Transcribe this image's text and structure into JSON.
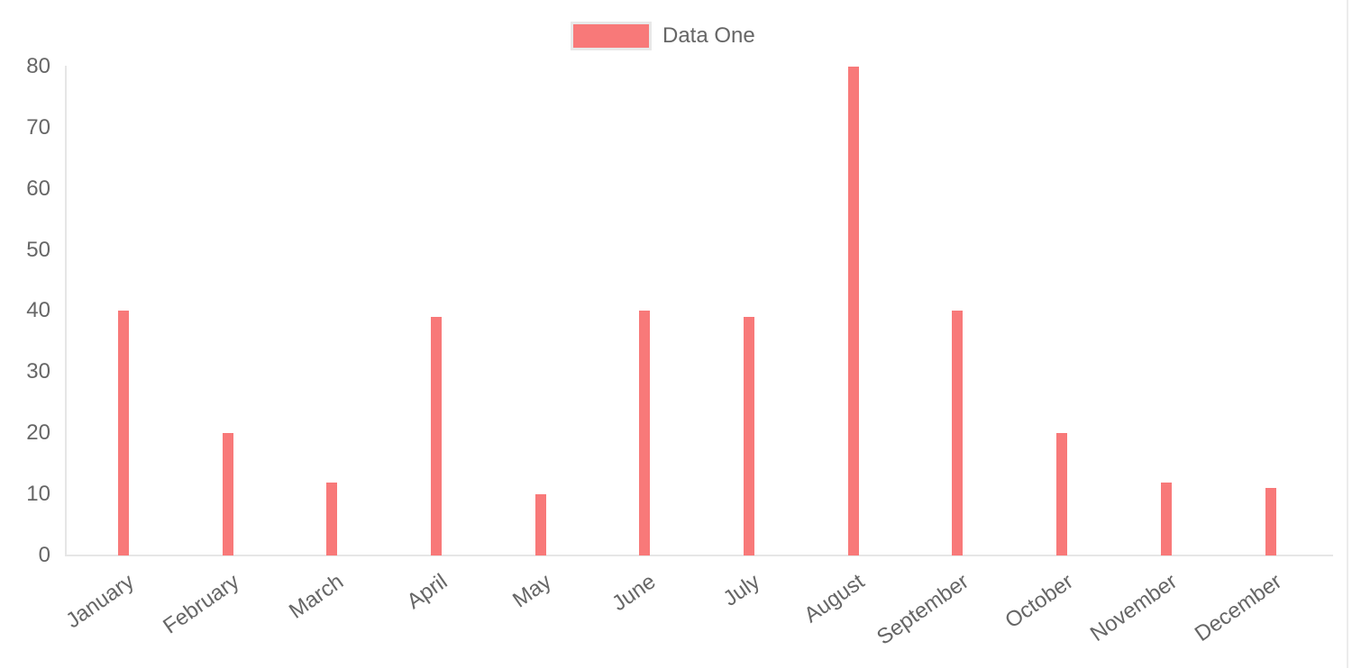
{
  "legend": {
    "label": "Data One"
  },
  "chart_data": {
    "type": "bar",
    "title": "",
    "xlabel": "",
    "ylabel": "",
    "categories": [
      "January",
      "February",
      "March",
      "April",
      "May",
      "June",
      "July",
      "August",
      "September",
      "October",
      "November",
      "December"
    ],
    "series": [
      {
        "name": "Data One",
        "values": [
          40,
          20,
          12,
          39,
          10,
          40,
          39,
          80,
          40,
          20,
          12,
          11
        ]
      }
    ],
    "ylim": [
      0,
      80
    ],
    "y_ticks": [
      0,
      10,
      20,
      30,
      40,
      50,
      60,
      70,
      80
    ],
    "grid": false,
    "legend_position": "top-center",
    "x_label_rotation_deg": -35,
    "colors": {
      "bar": "#f87979",
      "axis_line": "#e6e6e6",
      "tick_text": "#666666",
      "legend_box_border": "#e8e8e8",
      "right_divider": "#ececec"
    }
  }
}
